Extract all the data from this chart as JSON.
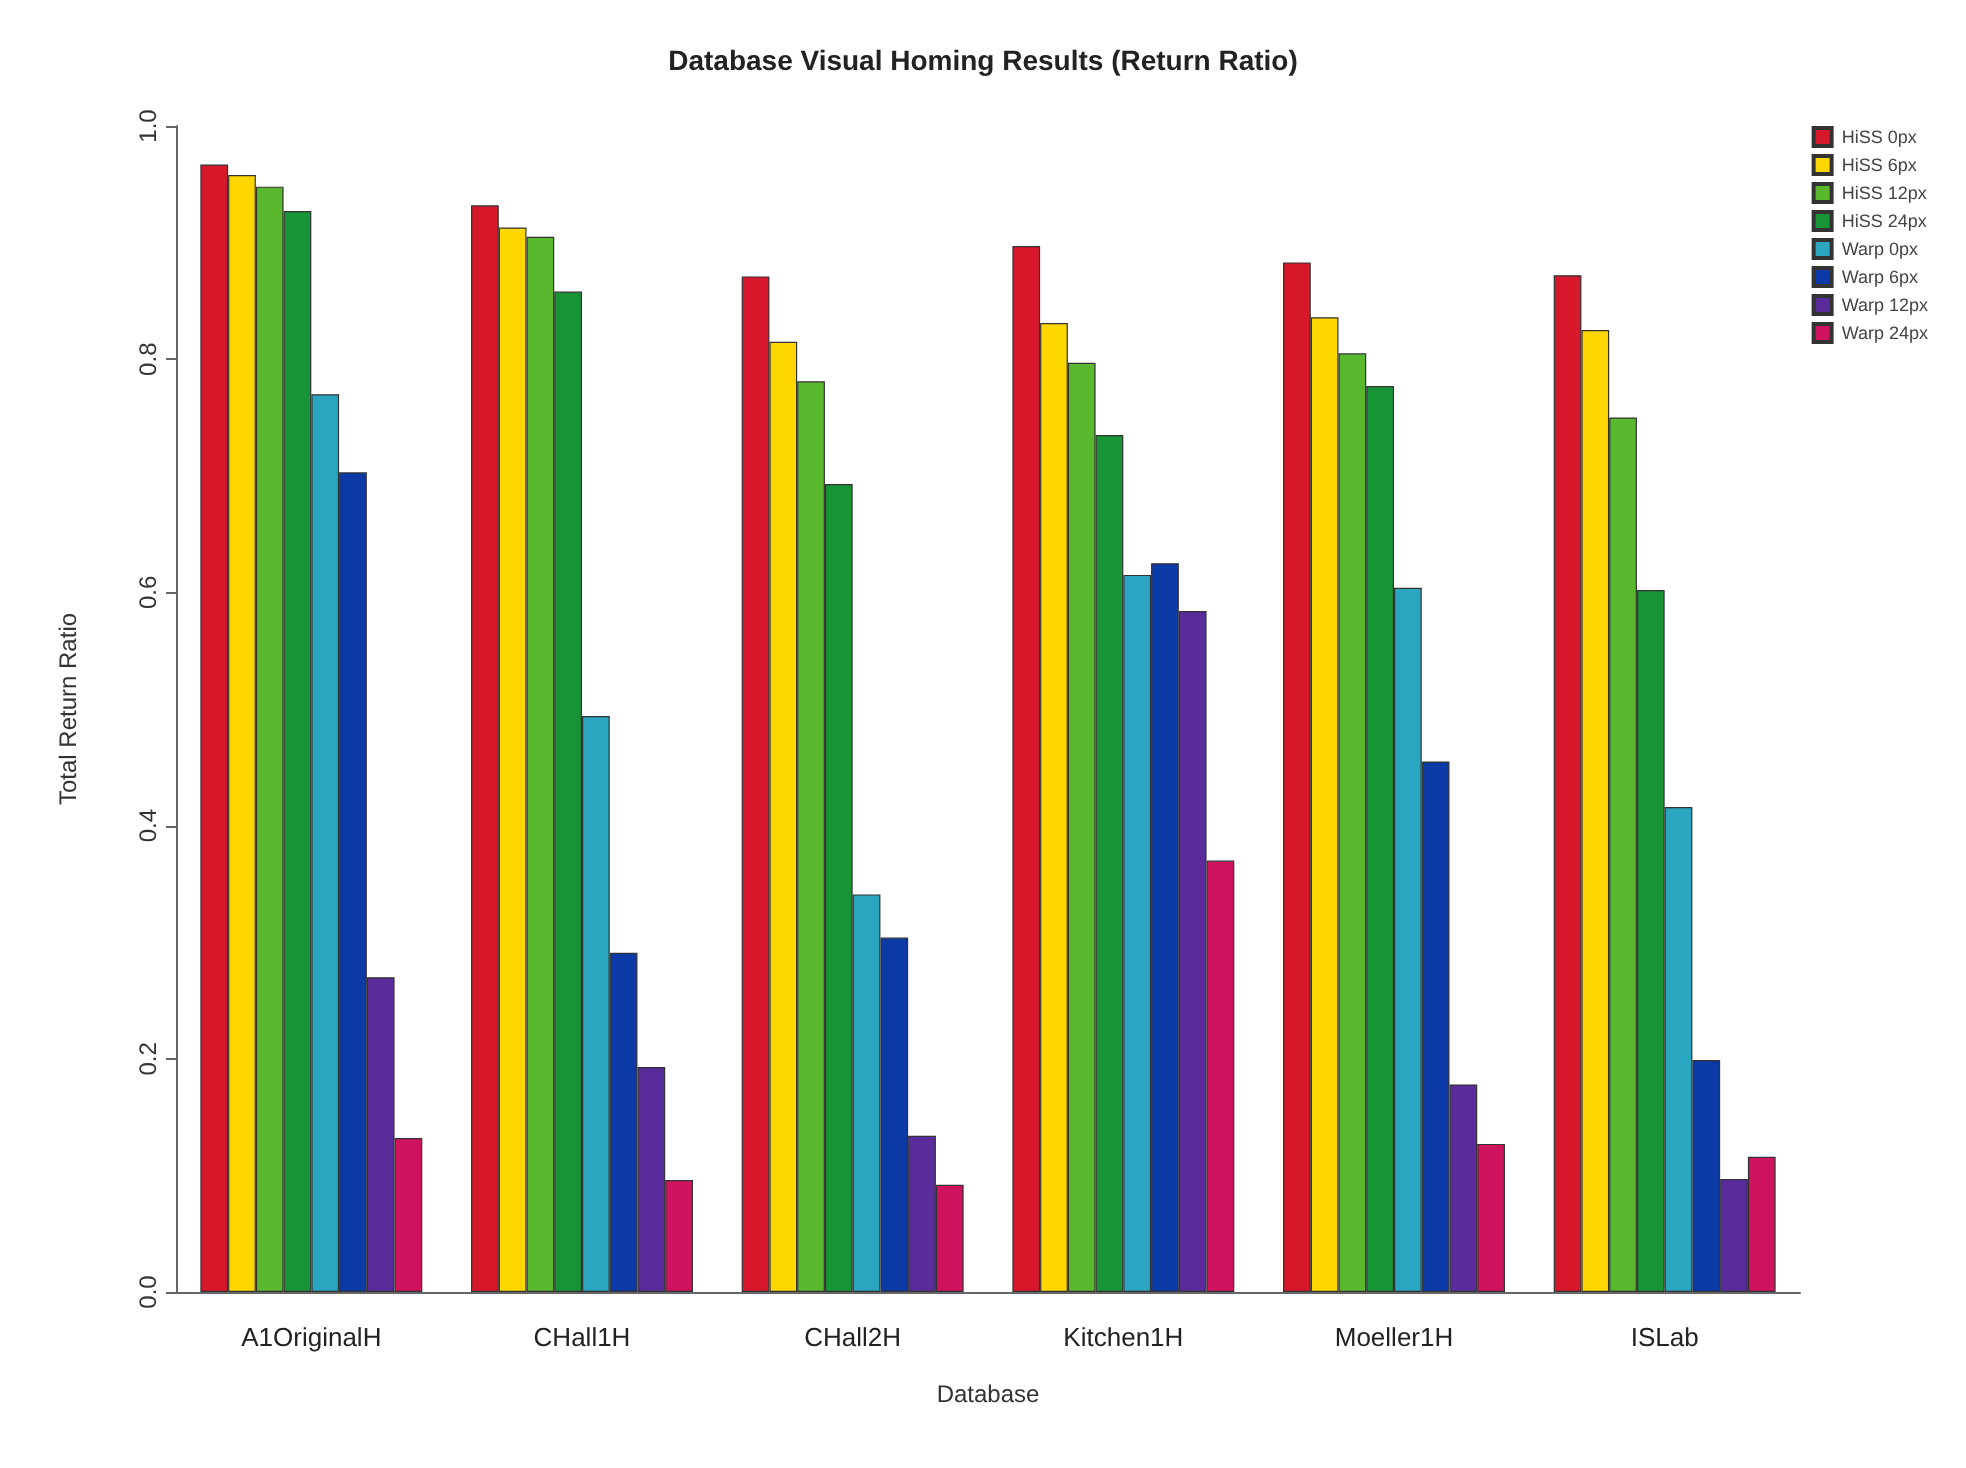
{
  "chart_data": {
    "type": "bar",
    "title": "Database Visual Homing Results (Return Ratio)",
    "xlabel": "Database",
    "ylabel": "Total Return Ratio",
    "categories": [
      "A1OriginalH",
      "CHall1H",
      "CHall2H",
      "Kitchen1H",
      "Moeller1H",
      "ISLab"
    ],
    "series": [
      {
        "name": "HiSS 0px",
        "color": "#d7182a",
        "values": [
          0.967,
          0.932,
          0.871,
          0.897,
          0.883,
          0.872
        ]
      },
      {
        "name": "HiSS 6px",
        "color": "#ffd700",
        "values": [
          0.958,
          0.913,
          0.815,
          0.831,
          0.836,
          0.825
        ]
      },
      {
        "name": "HiSS 12px",
        "color": "#5ab82e",
        "values": [
          0.948,
          0.905,
          0.781,
          0.797,
          0.805,
          0.75
        ]
      },
      {
        "name": "HiSS 24px",
        "color": "#179436",
        "values": [
          0.927,
          0.858,
          0.693,
          0.735,
          0.777,
          0.602
        ]
      },
      {
        "name": "Warp 0px",
        "color": "#2aa6c0",
        "values": [
          0.77,
          0.494,
          0.341,
          0.615,
          0.604,
          0.416
        ]
      },
      {
        "name": "Warp 6px",
        "color": "#0b3aa6",
        "values": [
          0.703,
          0.291,
          0.304,
          0.625,
          0.455,
          0.199
        ]
      },
      {
        "name": "Warp 12px",
        "color": "#5a2c9b",
        "values": [
          0.27,
          0.193,
          0.134,
          0.584,
          0.178,
          0.097
        ]
      },
      {
        "name": "Warp 24px",
        "color": "#d0135e",
        "values": [
          0.132,
          0.096,
          0.092,
          0.37,
          0.127,
          0.116
        ]
      }
    ],
    "ylim": [
      0,
      1
    ],
    "yticks": [
      {
        "value": 0,
        "label": "0.0"
      },
      0.2,
      0.4,
      0.6,
      0.8,
      {
        "value": 1,
        "label": "1.0"
      }
    ],
    "grid": false,
    "legend": "top right"
  }
}
